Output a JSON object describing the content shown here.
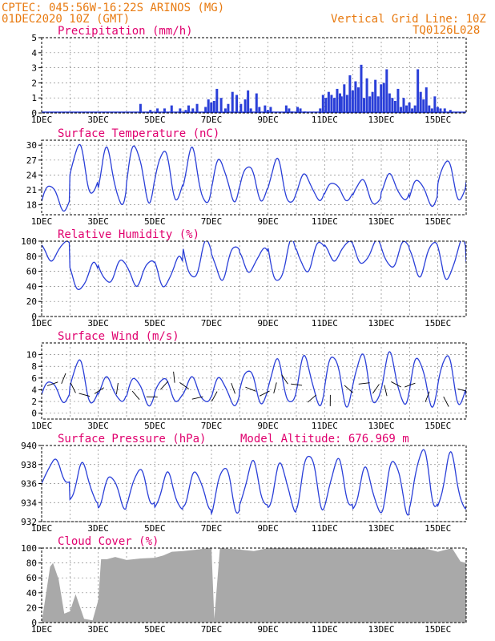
{
  "header": {
    "station": "CPTEC:  045:56W-16:22S  ARINOS (MG)",
    "date": "01DEC2020 10Z (GMT)",
    "grid_note": "Vertical Grid Line: 10Z",
    "code": "TQ0126L028"
  },
  "x_axis": {
    "labels": [
      "1DEC",
      "3DEC",
      "5DEC",
      "7DEC",
      "9DEC",
      "11DEC",
      "13DEC",
      "15DEC"
    ]
  },
  "colors": {
    "line": "#2a3fd8",
    "bar": "#2a3fd8",
    "cloud": "#a9a9a9",
    "title": "#e0006e",
    "header": "#e87a10",
    "grid": "#888888"
  },
  "chart_data": [
    {
      "type": "bar",
      "title": "Precipitation (mm/h)",
      "ylim": [
        0,
        5
      ],
      "yticks": [
        0,
        1,
        2,
        3,
        4,
        5
      ],
      "x_unit": "days since 01DEC 10Z",
      "x": [
        3.45,
        3.8,
        4.05,
        4.3,
        4.55,
        4.85,
        5.05,
        5.15,
        5.3,
        5.45,
        5.75,
        5.85,
        5.95,
        6.05,
        6.15,
        6.3,
        6.45,
        6.55,
        6.7,
        6.85,
        7.0,
        7.15,
        7.25,
        7.35,
        7.55,
        7.65,
        7.85,
        7.95,
        8.05,
        8.6,
        8.7,
        8.8,
        9.0,
        9.1,
        9.25,
        9.8,
        9.9,
        10.0,
        10.1,
        10.2,
        10.3,
        10.4,
        10.5,
        10.55,
        10.65,
        10.75,
        10.85,
        10.95,
        11.05,
        11.15,
        11.25,
        11.35,
        11.45,
        11.55,
        11.65,
        11.75,
        11.85,
        11.95,
        12.05,
        12.15,
        12.25,
        12.35,
        12.45,
        12.55,
        12.65,
        12.75,
        12.85,
        12.95,
        13.05,
        13.15,
        13.25,
        13.35,
        13.45,
        13.55,
        13.65,
        13.75,
        13.85,
        13.95,
        14.05,
        14.2,
        14.4
      ],
      "values": [
        0.6,
        0.2,
        0.3,
        0.3,
        0.5,
        0.3,
        0.2,
        0.5,
        0.3,
        0.6,
        0.4,
        0.9,
        0.7,
        0.8,
        1.6,
        1.0,
        0.3,
        0.6,
        1.4,
        1.2,
        0.6,
        0.9,
        1.5,
        0.3,
        1.3,
        0.4,
        0.5,
        0.2,
        0.4,
        0.5,
        0.3,
        0.1,
        0.4,
        0.3,
        0.1,
        0.3,
        1.2,
        1.0,
        1.4,
        1.2,
        1.0,
        1.6,
        1.3,
        1.1,
        1.9,
        1.2,
        2.5,
        1.5,
        2.1,
        1.7,
        3.2,
        1.0,
        2.3,
        1.1,
        1.4,
        2.2,
        1.1,
        1.9,
        2.0,
        2.9,
        1.3,
        1.0,
        0.8,
        1.6,
        0.4,
        1.0,
        0.5,
        0.7,
        0.3,
        0.5,
        2.9,
        1.4,
        0.9,
        1.7,
        0.5,
        0.3,
        1.1,
        0.4,
        0.3,
        0.3,
        0.2
      ],
      "xlim": [
        0,
        15
      ]
    },
    {
      "type": "line",
      "title": "Surface Temperature (nC)",
      "ylim": [
        16,
        31
      ],
      "yticks": [
        18,
        21,
        24,
        27,
        30
      ],
      "y_max_days": [
        0,
        1,
        2,
        3,
        4,
        5,
        6,
        7,
        8,
        9,
        10,
        11,
        12,
        13,
        14,
        15
      ],
      "y_max": [
        22,
        30,
        29,
        30,
        29,
        29,
        27,
        26,
        27,
        24,
        22.5,
        23,
        24,
        23,
        27,
        29.5
      ],
      "y_min": [
        17,
        20,
        18,
        19,
        19,
        18,
        19,
        19,
        18,
        19,
        19,
        18,
        19,
        18,
        19,
        19
      ],
      "xlim": [
        0,
        15
      ]
    },
    {
      "type": "line",
      "title": "Relative Humidity (%)",
      "ylim": [
        0,
        100
      ],
      "yticks": [
        0,
        20,
        40,
        60,
        80,
        100
      ],
      "y_max": [
        100,
        70,
        75,
        75,
        78,
        100,
        95,
        90,
        100,
        100,
        100,
        100,
        100,
        100,
        100,
        80
      ],
      "y_min": [
        75,
        35,
        45,
        42,
        40,
        50,
        50,
        60,
        45,
        60,
        75,
        70,
        65,
        55,
        50,
        40
      ],
      "xlim": [
        0,
        15
      ]
    },
    {
      "type": "line",
      "title": "Surface Wind (m/s)",
      "ylim": [
        -1,
        12
      ],
      "yticks": [
        0,
        2,
        4,
        6,
        8,
        10
      ],
      "y_max": [
        5.5,
        9.0,
        6.0,
        6.0,
        6.0,
        6.0,
        6.0,
        7.5,
        9.0,
        9.5,
        10.0,
        10.0,
        10.0,
        9.5,
        10.0,
        7.0
      ],
      "y_min": [
        2,
        1.5,
        2,
        1.5,
        2,
        1.8,
        1.5,
        1.8,
        1.5,
        1.5,
        1.5,
        1.5,
        1.5,
        1.5,
        1.5,
        1.0
      ],
      "xlim": [
        0,
        15
      ]
    },
    {
      "type": "line",
      "title": "Surface Pressure (hPa)",
      "note": "Model Altitude: 676.969  m",
      "ylim": [
        932,
        940
      ],
      "yticks": [
        932,
        934,
        936,
        938,
        940
      ],
      "y_max": [
        938.5,
        938.0,
        936.8,
        937.5,
        937.0,
        937.2,
        937.8,
        938.2,
        938.0,
        939.2,
        938.5,
        937.5,
        938.5,
        939.6,
        939.0,
        938.5
      ],
      "y_min": [
        936.0,
        934.0,
        933.5,
        933.8,
        933.2,
        933.5,
        933.0,
        933.5,
        933.2,
        933.5,
        933.5,
        933.0,
        933.0,
        933.5,
        933.2,
        933.5
      ],
      "xlim": [
        0,
        15
      ]
    },
    {
      "type": "area",
      "title": "Cloud Cover (%)",
      "ylim": [
        0,
        100
      ],
      "yticks": [
        0,
        20,
        40,
        60,
        80,
        100
      ],
      "x": [
        0.3,
        0.4,
        0.6,
        0.8,
        1.0,
        1.2,
        1.5,
        1.8,
        2.0,
        2.1,
        2.3,
        2.6,
        3.0,
        3.5,
        4.0,
        4.3,
        4.6,
        5.0,
        5.5,
        5.9,
        6.0,
        6.1,
        6.3,
        7.0,
        7.5,
        8.0,
        9.0,
        10.0,
        11.0,
        12.0,
        12.5,
        13.0,
        13.5,
        14.0,
        14.5,
        14.8,
        15.0
      ],
      "values": [
        75,
        80,
        58,
        12,
        15,
        38,
        5,
        3,
        30,
        85,
        85,
        88,
        84,
        86,
        87,
        90,
        95,
        96,
        98,
        100,
        100,
        5,
        100,
        98,
        96,
        100,
        100,
        100,
        100,
        100,
        98,
        100,
        100,
        95,
        100,
        82,
        80
      ],
      "xlim": [
        0,
        15
      ]
    }
  ]
}
